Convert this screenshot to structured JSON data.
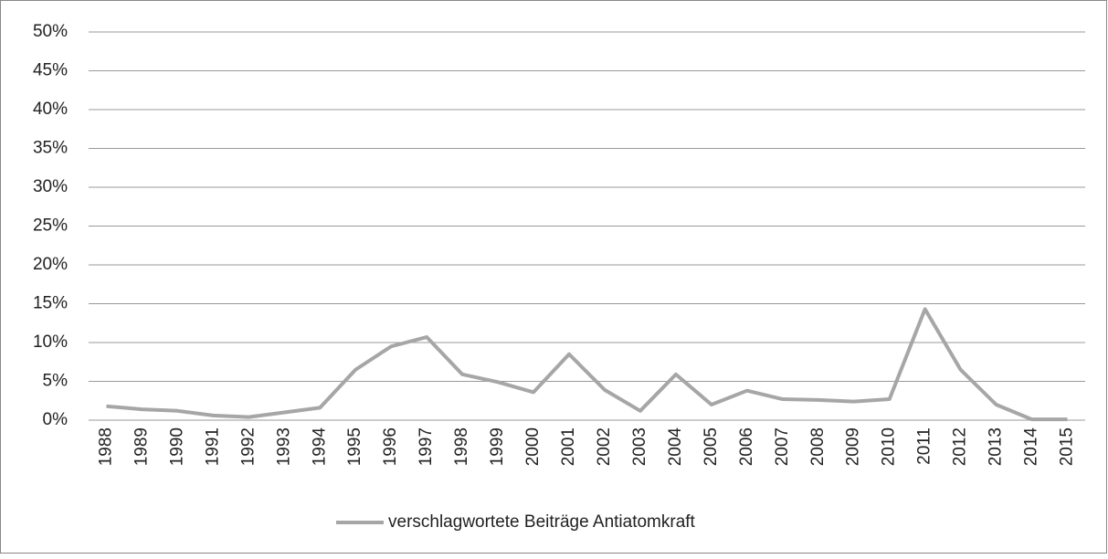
{
  "chart_data": {
    "type": "line",
    "categories": [
      "1988",
      "1989",
      "1990",
      "1991",
      "1992",
      "1993",
      "1994",
      "1995",
      "1996",
      "1997",
      "1998",
      "1999",
      "2000",
      "2001",
      "2002",
      "2003",
      "2004",
      "2005",
      "2006",
      "2007",
      "2008",
      "2009",
      "2010",
      "2011",
      "2012",
      "2013",
      "2014",
      "2015"
    ],
    "series": [
      {
        "name": "verschlagwortete Beiträge Antiatomkraft",
        "color": "#a6a6a6",
        "values": [
          1.8,
          1.4,
          1.2,
          0.6,
          0.4,
          1.0,
          1.6,
          6.5,
          9.5,
          10.7,
          5.9,
          4.9,
          3.6,
          8.5,
          3.9,
          1.2,
          5.9,
          2.0,
          3.8,
          2.7,
          2.6,
          2.4,
          2.7,
          14.3,
          6.5,
          2.0,
          0.1,
          0.1
        ]
      }
    ],
    "ylim": [
      0,
      50
    ],
    "yticks": [
      {
        "value": 0,
        "label": "0%"
      },
      {
        "value": 5,
        "label": "5%"
      },
      {
        "value": 10,
        "label": "10%"
      },
      {
        "value": 15,
        "label": "15%"
      },
      {
        "value": 20,
        "label": "20%"
      },
      {
        "value": 25,
        "label": "25%"
      },
      {
        "value": 30,
        "label": "30%"
      },
      {
        "value": 35,
        "label": "35%"
      },
      {
        "value": 40,
        "label": "40%"
      },
      {
        "value": 45,
        "label": "45%"
      },
      {
        "value": 50,
        "label": "50%"
      }
    ],
    "grid": true,
    "legend": "bottom"
  }
}
